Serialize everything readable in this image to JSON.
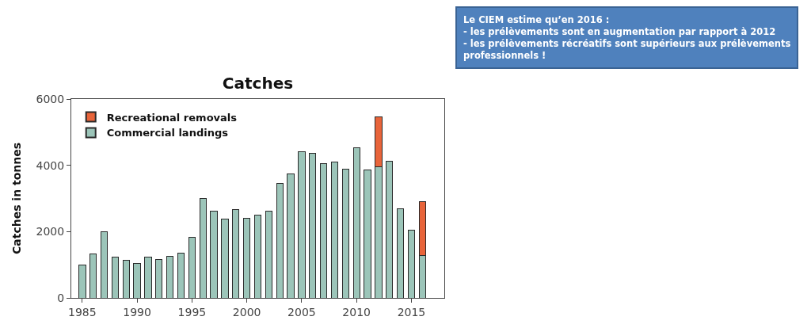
{
  "chart_data": {
    "type": "bar",
    "title": "Catches",
    "ylabel": "Catches in tonnes",
    "stacked": true,
    "x": [
      1985,
      1986,
      1987,
      1988,
      1989,
      1990,
      1991,
      1992,
      1993,
      1994,
      1995,
      1996,
      1997,
      1998,
      1999,
      2000,
      2001,
      2002,
      2003,
      2004,
      2005,
      2006,
      2007,
      2008,
      2009,
      2010,
      2011,
      2012,
      2013,
      2014,
      2015,
      2016
    ],
    "series": [
      {
        "name": "Commercial landings",
        "color": "#9cc5b9",
        "values": [
          1000,
          1330,
          1990,
          1240,
          1140,
          1050,
          1240,
          1170,
          1260,
          1360,
          1840,
          3000,
          2620,
          2380,
          2670,
          2410,
          2500,
          2620,
          3460,
          3730,
          4420,
          4360,
          4050,
          4090,
          3880,
          4540,
          3850,
          3950,
          4120,
          2680,
          2050,
          1280
        ]
      },
      {
        "name": "Recreational removals",
        "color": "#e8643a",
        "values": [
          null,
          null,
          null,
          null,
          null,
          null,
          null,
          null,
          null,
          null,
          null,
          null,
          null,
          null,
          null,
          null,
          null,
          null,
          null,
          null,
          null,
          null,
          null,
          null,
          null,
          null,
          null,
          1520,
          null,
          null,
          null,
          1630
        ]
      }
    ],
    "xlim": [
      1984,
      2018
    ],
    "xticks": [
      1985,
      1990,
      1995,
      2000,
      2005,
      2010,
      2015
    ],
    "ylim": [
      0,
      6000
    ],
    "yticks": [
      0,
      2000,
      4000,
      6000
    ],
    "legend": "top left",
    "annotations": [
      "Le CIEM estime qu’en 2016 :\n- les prélèvements sont en augmentation par rapport à 2012\n- les prélèvements récréatifs sont supérieurs aux prélèvements\nprofessionnels !"
    ]
  }
}
